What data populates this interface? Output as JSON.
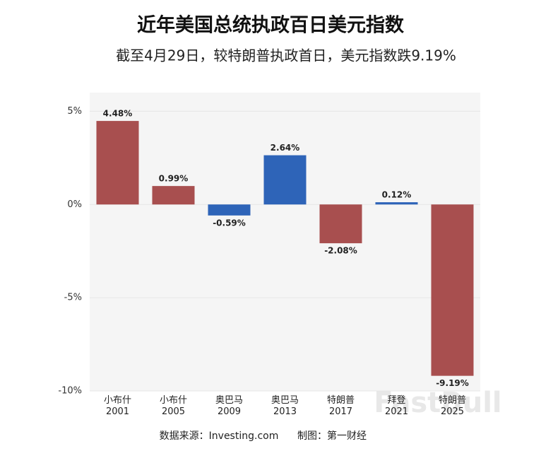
{
  "chart_data": {
    "type": "bar",
    "title": "近年美国总统执政百日美元指数",
    "subtitle": "截至4月29日，较特朗普执政首日，美元指数跌9.19%",
    "categories": [
      "小布什\n2001",
      "小布什\n2005",
      "奥巴马\n2009",
      "奥巴马\n2013",
      "特朗普\n2017",
      "拜登\n2021",
      "特朗普\n2025"
    ],
    "values": [
      4.48,
      0.99,
      -0.59,
      2.64,
      -2.08,
      0.12,
      -9.19
    ],
    "value_labels": [
      "4.48%",
      "0.99%",
      "-0.59%",
      "2.64%",
      "-2.08%",
      "0.12%",
      "-9.19%"
    ],
    "colors": [
      "#a84f4f",
      "#a84f4f",
      "#2e64b8",
      "#2e64b8",
      "#a84f4f",
      "#2e64b8",
      "#a84f4f"
    ],
    "ylim": [
      -10,
      6
    ],
    "yticks": [
      {
        "value": 5,
        "label": "5%"
      },
      {
        "value": 0,
        "label": "0%"
      },
      {
        "value": -5,
        "label": "-5%"
      },
      {
        "value": -10,
        "label": "-10%"
      }
    ],
    "grid": true,
    "source": "数据来源：Investing.com",
    "credit": "制图：第一财经",
    "watermark": "FastBull"
  }
}
